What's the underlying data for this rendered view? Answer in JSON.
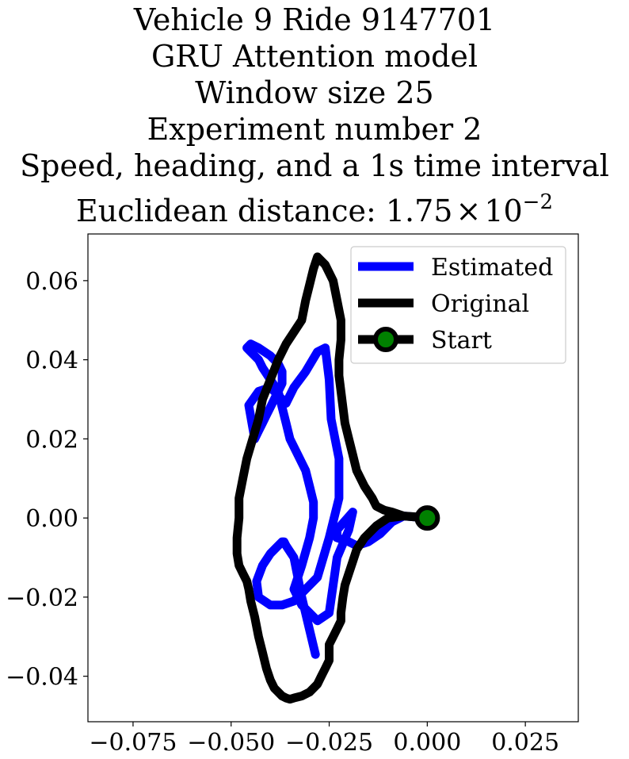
{
  "chart_data": {
    "type": "line",
    "title_lines": [
      "Vehicle 9 Ride 9147701",
      "GRU Attention model",
      "Window size 25",
      "Experiment number 2",
      "Speed, heading, and a 1s time interval"
    ],
    "metric_label": "Euclidean distance: ",
    "metric_mantissa": "1.75",
    "metric_times": "×",
    "metric_base": "10",
    "metric_exponent": "−2",
    "xlim": [
      -0.0865,
      0.0385
    ],
    "ylim": [
      -0.0515,
      0.0718
    ],
    "xticks": [
      -0.075,
      -0.05,
      -0.025,
      0.0,
      0.025
    ],
    "xtick_labels": [
      "−0.075",
      "−0.050",
      "−0.025",
      "0.000",
      "0.025"
    ],
    "yticks": [
      -0.04,
      -0.02,
      0.0,
      0.02,
      0.04,
      0.06
    ],
    "ytick_labels": [
      "−0.04",
      "−0.02",
      "0.00",
      "0.02",
      "0.04",
      "0.06"
    ],
    "grid": false,
    "legend_position": "top-right",
    "series": [
      {
        "name": "Estimated",
        "color": "#0000ff",
        "x": [
          0.0,
          -0.006,
          -0.009,
          -0.012,
          -0.015,
          -0.018,
          -0.02,
          -0.023,
          -0.023,
          -0.019,
          -0.02,
          -0.023,
          -0.025,
          -0.028,
          -0.03,
          -0.032,
          -0.033,
          -0.034,
          -0.032,
          -0.03,
          -0.029,
          -0.029,
          -0.03,
          -0.031,
          -0.033,
          -0.035,
          -0.036,
          -0.037,
          -0.038,
          -0.04,
          -0.042,
          -0.043,
          -0.045,
          -0.046,
          -0.045,
          -0.043,
          -0.04,
          -0.038,
          -0.037,
          -0.037,
          -0.038,
          -0.039,
          -0.04,
          -0.041,
          -0.042,
          -0.043,
          -0.044,
          -0.0455,
          -0.043,
          -0.04,
          -0.038,
          -0.036,
          -0.034,
          -0.031,
          -0.028,
          -0.026,
          -0.025,
          -0.0245,
          -0.0225,
          -0.0225,
          -0.025,
          -0.028,
          -0.034,
          -0.037,
          -0.04,
          -0.043,
          -0.0435,
          -0.042,
          -0.04,
          -0.038,
          -0.037,
          -0.0365,
          -0.036,
          -0.034,
          -0.032,
          -0.0285
        ],
        "y": [
          0.0,
          0.0005,
          -0.001,
          -0.004,
          -0.006,
          -0.007,
          -0.006,
          -0.005,
          -0.003,
          0.0015,
          -0.003,
          -0.01,
          -0.024,
          -0.026,
          -0.024,
          -0.022,
          -0.02,
          -0.018,
          -0.012,
          -0.005,
          0.0,
          0.004,
          0.008,
          0.012,
          0.016,
          0.02,
          0.024,
          0.028,
          0.032,
          0.035,
          0.038,
          0.04,
          0.042,
          0.043,
          0.044,
          0.043,
          0.041,
          0.039,
          0.037,
          0.034,
          0.032,
          0.03,
          0.028,
          0.026,
          0.024,
          0.022,
          0.02,
          0.0285,
          0.032,
          0.033,
          0.031,
          0.029,
          0.033,
          0.037,
          0.042,
          0.043,
          0.035,
          0.025,
          0.015,
          0.005,
          -0.005,
          -0.015,
          -0.021,
          -0.022,
          -0.022,
          -0.02,
          -0.016,
          -0.012,
          -0.009,
          -0.007,
          -0.006,
          -0.006,
          -0.007,
          -0.01,
          -0.02,
          -0.0345
        ]
      },
      {
        "name": "Original",
        "color": "#000000",
        "x": [
          0.0,
          -0.006,
          -0.009,
          -0.011,
          -0.013,
          -0.014,
          -0.016,
          -0.018,
          -0.019,
          -0.02,
          -0.021,
          -0.0215,
          -0.022,
          -0.0225,
          -0.0225,
          -0.022,
          -0.022,
          -0.023,
          -0.024,
          -0.026,
          -0.028,
          -0.029,
          -0.03,
          -0.031,
          -0.032,
          -0.034,
          -0.036,
          -0.038,
          -0.04,
          -0.042,
          -0.043,
          -0.0445,
          -0.046,
          -0.047,
          -0.048,
          -0.048,
          -0.0485,
          -0.0485,
          -0.048,
          -0.047,
          -0.046,
          -0.0455,
          -0.045,
          -0.044,
          -0.043,
          -0.042,
          -0.041,
          -0.04,
          -0.039,
          -0.038,
          -0.037,
          -0.036,
          -0.035,
          -0.034,
          -0.032,
          -0.03,
          -0.028,
          -0.027,
          -0.026,
          -0.025,
          -0.025,
          -0.025,
          -0.024,
          -0.023,
          -0.022,
          -0.022,
          -0.0215,
          -0.021,
          -0.02,
          -0.019,
          -0.018,
          -0.016,
          -0.013,
          -0.01,
          -0.006,
          -0.003,
          0.0
        ],
        "y": [
          0.0,
          0.0005,
          0.0015,
          0.002,
          0.003,
          0.005,
          0.008,
          0.012,
          0.016,
          0.02,
          0.024,
          0.028,
          0.032,
          0.036,
          0.04,
          0.045,
          0.05,
          0.055,
          0.06,
          0.064,
          0.066,
          0.063,
          0.059,
          0.055,
          0.05,
          0.047,
          0.044,
          0.04,
          0.035,
          0.03,
          0.025,
          0.02,
          0.015,
          0.01,
          0.005,
          0.0,
          -0.005,
          -0.009,
          -0.012,
          -0.014,
          -0.016,
          -0.018,
          -0.021,
          -0.025,
          -0.03,
          -0.034,
          -0.038,
          -0.041,
          -0.043,
          -0.044,
          -0.045,
          -0.0455,
          -0.0458,
          -0.0455,
          -0.045,
          -0.044,
          -0.042,
          -0.04,
          -0.038,
          -0.036,
          -0.034,
          -0.032,
          -0.03,
          -0.028,
          -0.026,
          -0.024,
          -0.02,
          -0.017,
          -0.014,
          -0.011,
          -0.008,
          -0.005,
          -0.002,
          0.0,
          0.0005,
          0.0003,
          0.0
        ]
      }
    ],
    "start": {
      "name": "Start",
      "x": 0.0,
      "y": 0.0,
      "marker_color": "#008000",
      "edge_color": "#000000"
    }
  }
}
